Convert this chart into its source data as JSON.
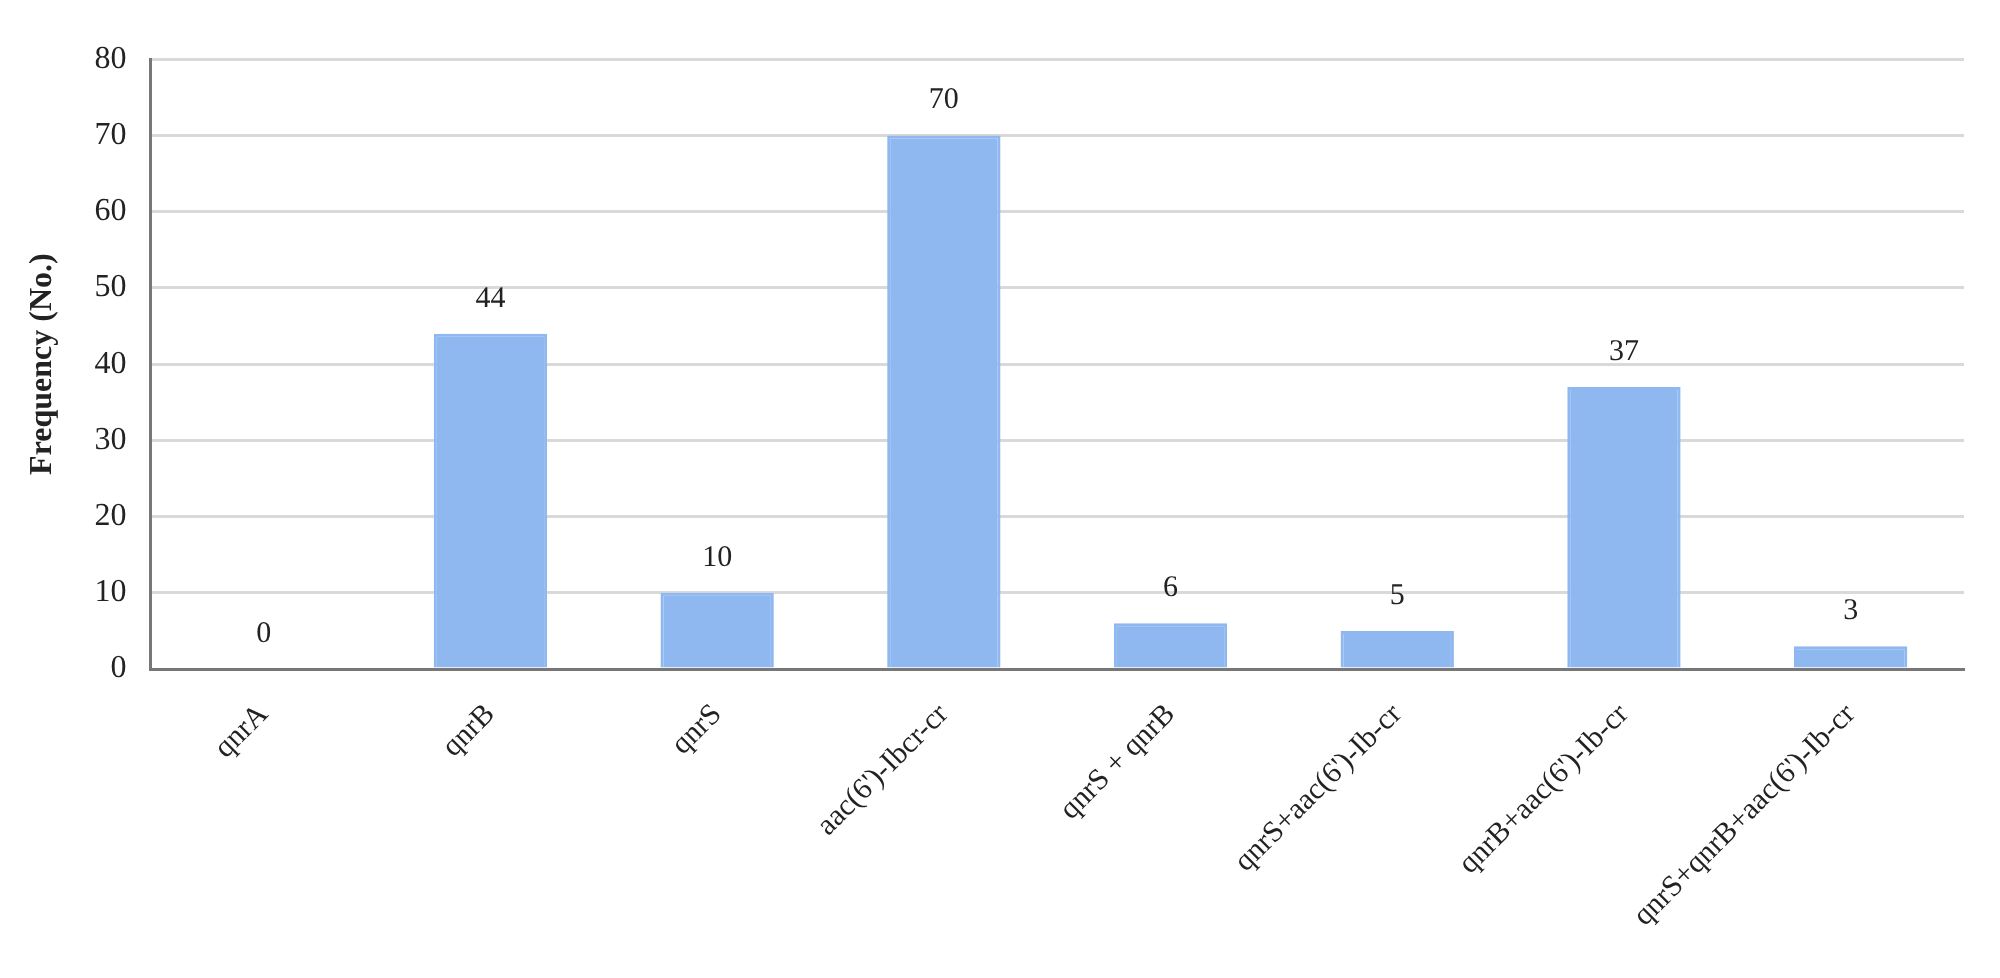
{
  "chart_data": {
    "type": "bar",
    "ylabel": "Frequency (No.)",
    "categories": [
      "qnrA",
      "qnrB",
      "qnrS",
      "aac(6')-Ibcr-cr",
      "qnrS + qnrB",
      "qnrS+aac(6')-Ib-cr",
      "qnrB+aac(6')-Ib-cr",
      "qnrS+qnrB+aac(6')-Ib-cr"
    ],
    "values": [
      0,
      44,
      10,
      70,
      6,
      5,
      37,
      3
    ],
    "color": "#8fb8f0",
    "ylim": [
      0,
      80
    ],
    "yticks": [
      0,
      10,
      20,
      30,
      40,
      50,
      60,
      70,
      80
    ],
    "grid": "y",
    "data_labels": true,
    "legend": false
  }
}
